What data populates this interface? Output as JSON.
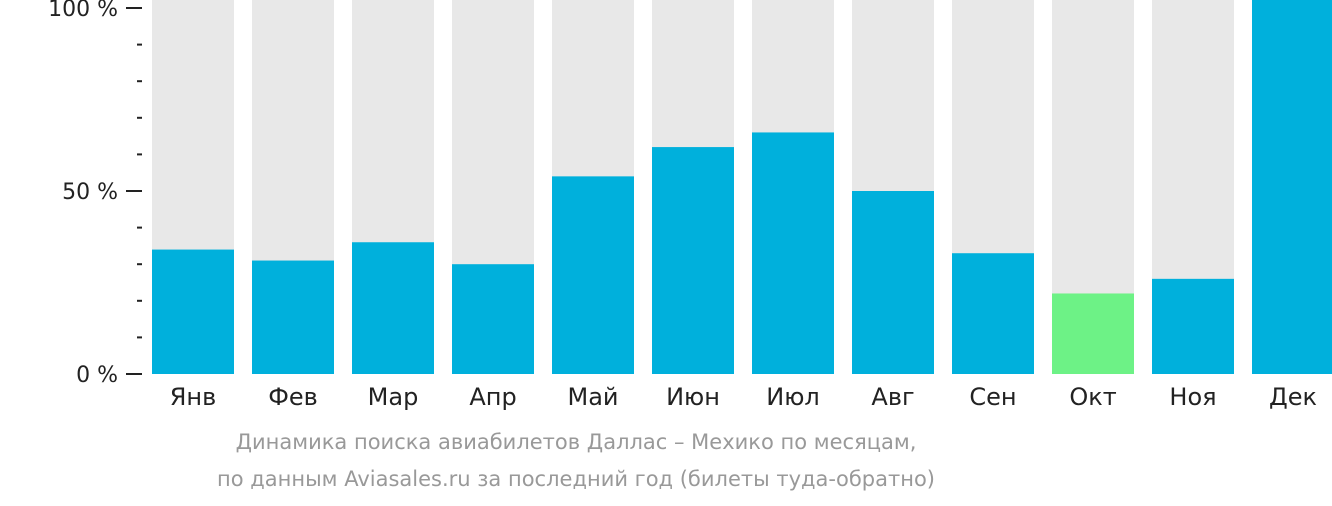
{
  "chart_data": {
    "type": "bar",
    "categories": [
      "Янв",
      "Фев",
      "Мар",
      "Апр",
      "Май",
      "Июн",
      "Июл",
      "Авг",
      "Сен",
      "Окт",
      "Ноя",
      "Дек"
    ],
    "values": [
      34,
      31,
      36,
      30,
      54,
      62,
      66,
      50,
      33,
      22,
      26,
      100
    ],
    "ylim": [
      0,
      100
    ],
    "yticks": [
      {
        "value": 0,
        "label": "0 %"
      },
      {
        "value": 50,
        "label": "50 %"
      },
      {
        "value": 100,
        "label": "100 %"
      }
    ],
    "minor_tick_step": 10,
    "highlight_index": 9,
    "colors": {
      "bar": "#00b0dc",
      "highlight": "#6df286",
      "background_bar": "#e8e8e8",
      "axis": "#222222"
    },
    "grid": false,
    "legend": "none",
    "caption": [
      "Динамика поиска авиабилетов Даллас – Мехико по месяцам,",
      "по данным Aviasales.ru за последний год (билеты туда-обратно)"
    ]
  }
}
